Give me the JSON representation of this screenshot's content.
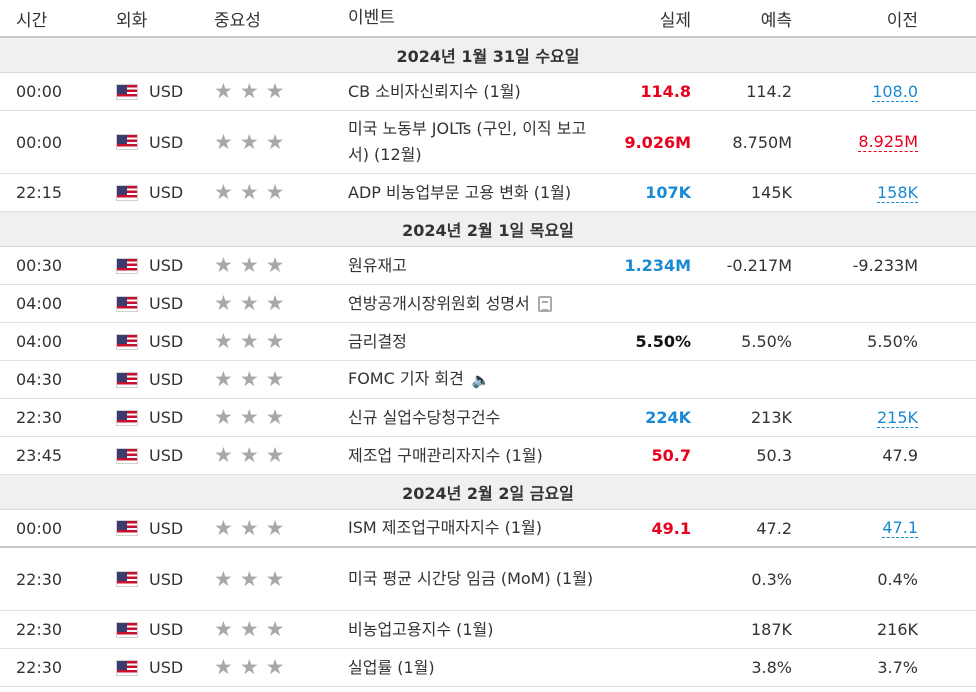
{
  "headers": {
    "time": "시간",
    "currency": "외화",
    "importance": "중요성",
    "event": "이벤트",
    "actual": "실제",
    "forecast": "예측",
    "previous": "이전"
  },
  "colors": {
    "red": "#e8001c",
    "blue": "#1a8ad4",
    "day_bg": "#eef0f2",
    "star": "#a8a8a8"
  },
  "icons": {
    "flag": "us-flag-icon",
    "star": "star-icon",
    "document": "document-icon",
    "speaker": "speaker-icon"
  },
  "days": [
    {
      "label": "2024년 1월 31일 수요일"
    },
    {
      "label": "2024년 2월 1일 목요일"
    },
    {
      "label": "2024년 2월 2일 금요일"
    }
  ],
  "rows": [
    {
      "time": "00:00",
      "currency": "USD",
      "event": "CB 소비자신뢰지수 (1월)",
      "actual": "114.8",
      "forecast": "114.2",
      "previous": "108.0"
    },
    {
      "time": "00:00",
      "currency": "USD",
      "event": "미국 노동부 JOLTs (구인, 이직 보고서) (12월)",
      "actual": "9.026M",
      "forecast": "8.750M",
      "previous": "8.925M"
    },
    {
      "time": "22:15",
      "currency": "USD",
      "event": "ADP 비농업부문 고용 변화 (1월)",
      "actual": "107K",
      "forecast": "145K",
      "previous": "158K"
    },
    {
      "time": "00:30",
      "currency": "USD",
      "event": "원유재고",
      "actual": "1.234M",
      "forecast": "-0.217M",
      "previous": "-9.233M"
    },
    {
      "time": "04:00",
      "currency": "USD",
      "event": "연방공개시장위원회 성명서",
      "actual": "",
      "forecast": "",
      "previous": ""
    },
    {
      "time": "04:00",
      "currency": "USD",
      "event": "금리결정",
      "actual": "5.50%",
      "forecast": "5.50%",
      "previous": "5.50%"
    },
    {
      "time": "04:30",
      "currency": "USD",
      "event": "FOMC 기자 회견",
      "actual": "",
      "forecast": "",
      "previous": ""
    },
    {
      "time": "22:30",
      "currency": "USD",
      "event": "신규 실업수당청구건수",
      "actual": "224K",
      "forecast": "213K",
      "previous": "215K"
    },
    {
      "time": "23:45",
      "currency": "USD",
      "event": "제조업 구매관리자지수 (1월)",
      "actual": "50.7",
      "forecast": "50.3",
      "previous": "47.9"
    },
    {
      "time": "00:00",
      "currency": "USD",
      "event": "ISM 제조업구매자지수 (1월)",
      "actual": "49.1",
      "forecast": "47.2",
      "previous": "47.1"
    },
    {
      "time": "22:30",
      "currency": "USD",
      "event": "미국 평균 시간당 임금 (MoM) (1월)",
      "actual": "",
      "forecast": "0.3%",
      "previous": "0.4%"
    },
    {
      "time": "22:30",
      "currency": "USD",
      "event": "비농업고용지수 (1월)",
      "actual": "",
      "forecast": "187K",
      "previous": "216K"
    },
    {
      "time": "22:30",
      "currency": "USD",
      "event": "실업률 (1월)",
      "actual": "",
      "forecast": "3.8%",
      "previous": "3.7%"
    }
  ]
}
